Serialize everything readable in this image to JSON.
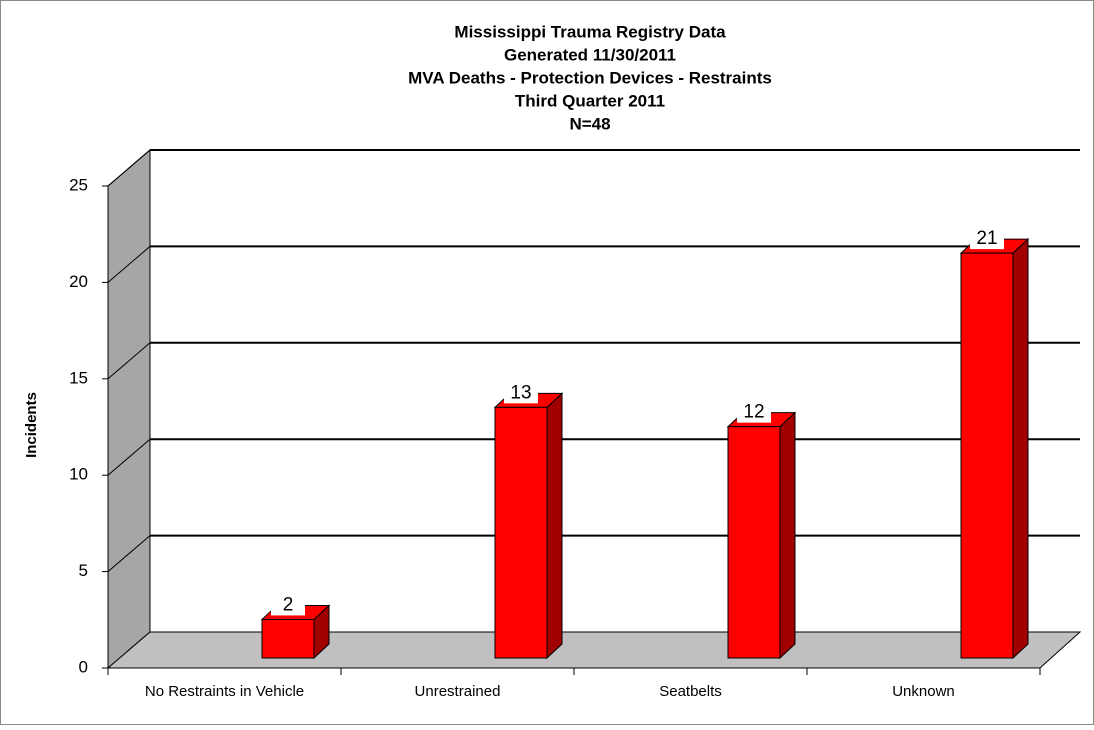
{
  "chart_data": {
    "type": "bar3d",
    "title": [
      "Mississippi Trauma Registry Data",
      "Generated 11/30/2011",
      "MVA Deaths - Protection Devices - Restraints",
      "Third Quarter 2011",
      "N=48"
    ],
    "y_label": "Incidents",
    "categories": [
      "No Restraints in Vehicle",
      "Unrestrained",
      "Seatbelts",
      "Unknown"
    ],
    "values": [
      2,
      13,
      12,
      21
    ],
    "color": "#ff0000",
    "ylim": [
      0,
      25
    ],
    "yticks": [
      0,
      5,
      10,
      15,
      20,
      25
    ],
    "grid": true
  }
}
